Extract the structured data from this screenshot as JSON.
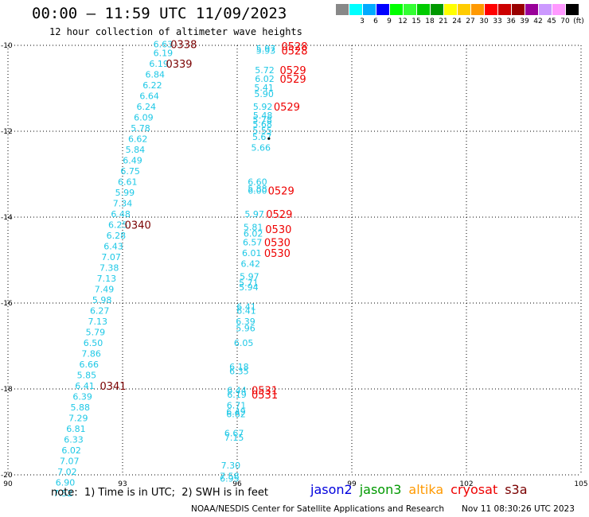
{
  "title": "00:00 – 11:59 UTC 11/09/2023",
  "subtitle": "12 hour collection of altimeter wave heights",
  "legend": {
    "colors": [
      "#777777",
      "#00ffff",
      "#00aaff",
      "#0000ff",
      "#00ffff",
      "#33ff33",
      "#00cc00",
      "#009900",
      "#ffff00",
      "#ffcc00",
      "#ff9900",
      "#ff0000",
      "#cc0000",
      "#990000",
      "#990099",
      "#cc99ff",
      "#ff99ff",
      "#000000"
    ],
    "colors_fix": [
      "#888888",
      "#00ffff",
      "#00aaff",
      "#0000ff",
      "#00ff00",
      "#33ff33",
      "#00cc00",
      "#009900",
      "#ffff00",
      "#ffcc00",
      "#ff9900",
      "#ff0000",
      "#cc0000",
      "#990000",
      "#990099",
      "#cc99ff",
      "#ff99ff",
      "#000000"
    ],
    "labels": [
      "",
      "3",
      "6",
      "9",
      "12",
      "15",
      "18",
      "21",
      "24",
      "27",
      "30",
      "33",
      "36",
      "39",
      "42",
      "45",
      "70",
      "(ft)"
    ]
  },
  "axes": {
    "lon_ticks": [
      "90",
      "93",
      "96",
      "99",
      "102",
      "105"
    ],
    "lat_ticks": [
      "-10",
      "-12",
      "-14",
      "-16",
      "-18",
      "-20"
    ]
  },
  "swh_color": "#1ec8e6",
  "time_colors": {
    "jason3_track": "#7a0000",
    "cryosat_track": "#ee0000"
  },
  "track_a": [
    {
      "v": "6.63",
      "lon": 94.06,
      "lat": -9.97
    },
    {
      "v": "6.19",
      "lon": 94.06,
      "lat": -10.18
    },
    {
      "v": "6.19",
      "lon": 93.95,
      "lat": -10.43
    },
    {
      "v": "6.84",
      "lon": 93.85,
      "lat": -10.68
    },
    {
      "v": "6.22",
      "lon": 93.78,
      "lat": -10.93
    },
    {
      "v": "6.64",
      "lon": 93.7,
      "lat": -11.18
    },
    {
      "v": "6.24",
      "lon": 93.62,
      "lat": -11.43
    },
    {
      "v": "6.09",
      "lon": 93.55,
      "lat": -11.68
    },
    {
      "v": "5.78",
      "lon": 93.47,
      "lat": -11.93
    },
    {
      "v": "6.62",
      "lon": 93.4,
      "lat": -12.18
    },
    {
      "v": "5.84",
      "lon": 93.33,
      "lat": -12.43
    },
    {
      "v": "6.49",
      "lon": 93.26,
      "lat": -12.68
    },
    {
      "v": "6.75",
      "lon": 93.2,
      "lat": -12.93
    },
    {
      "v": "6.61",
      "lon": 93.13,
      "lat": -13.18
    },
    {
      "v": "5.99",
      "lon": 93.06,
      "lat": -13.43
    },
    {
      "v": "7.34",
      "lon": 93.0,
      "lat": -13.68
    },
    {
      "v": "6.48",
      "lon": 92.95,
      "lat": -13.93
    },
    {
      "v": "6.25",
      "lon": 92.88,
      "lat": -14.18
    },
    {
      "v": "6.28",
      "lon": 92.83,
      "lat": -14.43
    },
    {
      "v": "6.43",
      "lon": 92.76,
      "lat": -14.68
    },
    {
      "v": "7.07",
      "lon": 92.7,
      "lat": -14.93
    },
    {
      "v": "7.38",
      "lon": 92.65,
      "lat": -15.18
    },
    {
      "v": "7.13",
      "lon": 92.58,
      "lat": -15.43
    },
    {
      "v": "7.49",
      "lon": 92.52,
      "lat": -15.68
    },
    {
      "v": "5.98",
      "lon": 92.46,
      "lat": -15.93
    },
    {
      "v": "6.27",
      "lon": 92.4,
      "lat": -16.18
    },
    {
      "v": "7.13",
      "lon": 92.35,
      "lat": -16.43
    },
    {
      "v": "5.79",
      "lon": 92.29,
      "lat": -16.68
    },
    {
      "v": "6.50",
      "lon": 92.23,
      "lat": -16.93
    },
    {
      "v": "7.86",
      "lon": 92.18,
      "lat": -17.18
    },
    {
      "v": "6.66",
      "lon": 92.12,
      "lat": -17.43
    },
    {
      "v": "5.85",
      "lon": 92.06,
      "lat": -17.68
    },
    {
      "v": "6.41",
      "lon": 92.01,
      "lat": -17.93
    },
    {
      "v": "6.39",
      "lon": 91.95,
      "lat": -18.18
    },
    {
      "v": "5.88",
      "lon": 91.89,
      "lat": -18.43
    },
    {
      "v": "7.29",
      "lon": 91.84,
      "lat": -18.68
    },
    {
      "v": "6.81",
      "lon": 91.78,
      "lat": -18.93
    },
    {
      "v": "6.33",
      "lon": 91.72,
      "lat": -19.18
    },
    {
      "v": "6.02",
      "lon": 91.66,
      "lat": -19.43
    },
    {
      "v": "7.07",
      "lon": 91.61,
      "lat": -19.68
    },
    {
      "v": "7.02",
      "lon": 91.55,
      "lat": -19.93
    },
    {
      "v": "6.90",
      "lon": 91.5,
      "lat": -20.18
    },
    {
      "v": "7.52",
      "lon": 91.44,
      "lat": -20.43
    }
  ],
  "times_a": [
    {
      "t": "0338",
      "lon": 94.6,
      "lat": -9.97
    },
    {
      "t": "0339",
      "lon": 94.48,
      "lat": -10.43
    },
    {
      "t": "0340",
      "lon": 93.4,
      "lat": -14.18
    },
    {
      "t": "0341",
      "lon": 92.75,
      "lat": -17.93
    }
  ],
  "track_b": [
    {
      "v": "5.97",
      "lon": 96.75,
      "lat": -10.07
    },
    {
      "v": "5.93",
      "lon": 96.75,
      "lat": -10.12
    },
    {
      "v": "5.72",
      "lon": 96.72,
      "lat": -10.57
    },
    {
      "v": "6.02",
      "lon": 96.72,
      "lat": -10.78
    },
    {
      "v": "5.41",
      "lon": 96.7,
      "lat": -10.98
    },
    {
      "v": "5.90",
      "lon": 96.7,
      "lat": -11.13
    },
    {
      "v": "5.92",
      "lon": 96.67,
      "lat": -11.43
    },
    {
      "v": "5.48",
      "lon": 96.67,
      "lat": -11.63
    },
    {
      "v": "5.78",
      "lon": 96.66,
      "lat": -11.73
    },
    {
      "v": "5.68",
      "lon": 96.66,
      "lat": -11.83
    },
    {
      "v": "5.55",
      "lon": 96.66,
      "lat": -11.98
    },
    {
      "v": "5.67",
      "lon": 96.65,
      "lat": -12.13
    },
    {
      "v": "5.66",
      "lon": 96.62,
      "lat": -12.38
    },
    {
      "v": "6.60",
      "lon": 96.53,
      "lat": -13.18
    },
    {
      "v": "5.88",
      "lon": 96.53,
      "lat": -13.33
    },
    {
      "v": "6.00",
      "lon": 96.53,
      "lat": -13.38
    },
    {
      "v": "5.97",
      "lon": 96.45,
      "lat": -13.93
    },
    {
      "v": "5.81",
      "lon": 96.42,
      "lat": -14.23
    },
    {
      "v": "6.02",
      "lon": 96.42,
      "lat": -14.38
    },
    {
      "v": "6.57",
      "lon": 96.4,
      "lat": -14.58
    },
    {
      "v": "6.01",
      "lon": 96.38,
      "lat": -14.83
    },
    {
      "v": "6.42",
      "lon": 96.35,
      "lat": -15.08
    },
    {
      "v": "5.97",
      "lon": 96.32,
      "lat": -15.38
    },
    {
      "v": "5.71",
      "lon": 96.3,
      "lat": -15.53
    },
    {
      "v": "5.94",
      "lon": 96.3,
      "lat": -15.63
    },
    {
      "v": "6.41",
      "lon": 96.24,
      "lat": -16.08
    },
    {
      "v": "6.41",
      "lon": 96.24,
      "lat": -16.18
    },
    {
      "v": "6.39",
      "lon": 96.22,
      "lat": -16.43
    },
    {
      "v": "5.96",
      "lon": 96.22,
      "lat": -16.58
    },
    {
      "v": "6.05",
      "lon": 96.17,
      "lat": -16.93
    },
    {
      "v": "6.18",
      "lon": 96.05,
      "lat": -17.48
    },
    {
      "v": "6.35",
      "lon": 96.05,
      "lat": -17.58
    },
    {
      "v": "6.44",
      "lon": 95.99,
      "lat": -18.03
    },
    {
      "v": "6.19",
      "lon": 95.99,
      "lat": -18.13
    },
    {
      "v": "6.71",
      "lon": 95.98,
      "lat": -18.38
    },
    {
      "v": "6.49",
      "lon": 95.97,
      "lat": -18.53
    },
    {
      "v": "6.62",
      "lon": 95.97,
      "lat": -18.58
    },
    {
      "v": "6.67",
      "lon": 95.92,
      "lat": -19.03
    },
    {
      "v": "7.15",
      "lon": 95.92,
      "lat": -19.13
    },
    {
      "v": "7.30",
      "lon": 95.83,
      "lat": -19.78
    },
    {
      "v": "7.58",
      "lon": 95.8,
      "lat": -20.03
    },
    {
      "v": "6.95",
      "lon": 95.8,
      "lat": -20.08
    }
  ],
  "times_b": [
    {
      "t": "0528",
      "lon": 97.5,
      "lat": -10.02
    },
    {
      "t": "0528",
      "lon": 97.5,
      "lat": -10.12
    },
    {
      "t": "0529",
      "lon": 97.46,
      "lat": -10.57
    },
    {
      "t": "0529",
      "lon": 97.46,
      "lat": -10.78
    },
    {
      "t": "0529",
      "lon": 97.3,
      "lat": -11.43
    },
    {
      "t": "0529",
      "lon": 97.15,
      "lat": -13.38
    },
    {
      "t": "0529",
      "lon": 97.1,
      "lat": -13.93
    },
    {
      "t": "0530",
      "lon": 97.08,
      "lat": -14.28
    },
    {
      "t": "0530",
      "lon": 97.05,
      "lat": -14.58
    },
    {
      "t": "0530",
      "lon": 97.05,
      "lat": -14.83
    },
    {
      "t": "0531",
      "lon": 96.72,
      "lat": -18.03
    },
    {
      "t": "0531",
      "lon": 96.72,
      "lat": -18.13
    }
  ],
  "island": {
    "lon": 96.83,
    "lat": -12.17
  },
  "note": "note:  1) Time is in UTC;  2) SWH is in feet",
  "satellites": [
    {
      "name": "jason2",
      "color": "#0000dd"
    },
    {
      "name": "jason3",
      "color": "#009900"
    },
    {
      "name": "altika",
      "color": "#ff9900"
    },
    {
      "name": "cryosat",
      "color": "#ee0000"
    },
    {
      "name": "s3a",
      "color": "#7a0000"
    }
  ],
  "credit": "NOAA/NESDIS Center for Satellite Applications and Research",
  "timestamp": "Nov 11 08:30:26 UTC 2023"
}
